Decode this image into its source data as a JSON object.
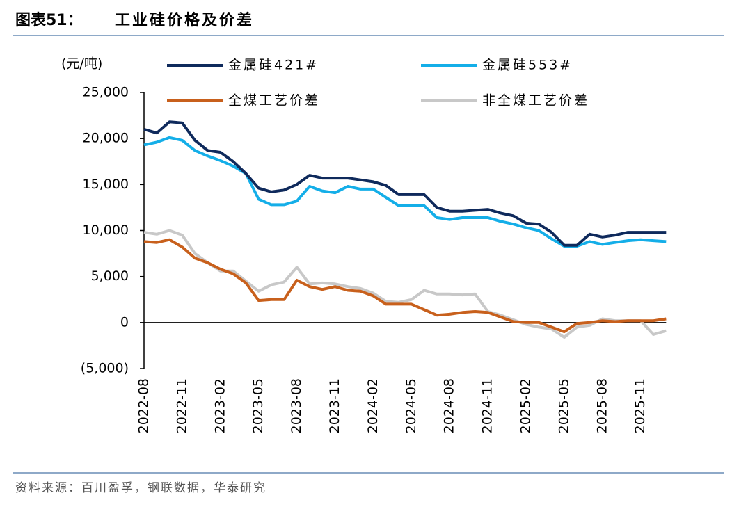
{
  "chart_data": {
    "type": "line",
    "figure_label": "图表51：",
    "title": "工业硅价格及价差",
    "ylabel": "(元/吨)",
    "source": "资料来源：百川盈孚，钢联数据，华泰研究",
    "x": [
      "2022-08",
      "2022-09",
      "2022-10",
      "2022-11",
      "2022-12",
      "2023-01",
      "2023-02",
      "2023-03",
      "2023-04",
      "2023-05",
      "2023-06",
      "2023-07",
      "2023-08",
      "2023-09",
      "2023-10",
      "2023-11",
      "2023-12",
      "2024-01",
      "2024-02",
      "2024-03",
      "2024-04",
      "2024-05",
      "2024-06",
      "2024-07",
      "2024-08",
      "2024-09",
      "2024-10",
      "2024-11",
      "2024-12",
      "2025-01",
      "2025-02",
      "2025-03",
      "2025-04",
      "2025-05",
      "2025-06",
      "2025-07",
      "2025-08",
      "2025-09",
      "2025-10",
      "2025-11",
      "2025-12",
      "2026-01"
    ],
    "xticks": [
      "2022-08",
      "2022-11",
      "2023-02",
      "2023-05",
      "2023-08",
      "2023-11",
      "2024-02",
      "2024-05",
      "2024-08",
      "2024-11",
      "2025-02",
      "2025-05",
      "2025-08",
      "2025-11"
    ],
    "ylim": [
      -5000,
      25000
    ],
    "yticks": [
      {
        "value": -5000,
        "label": "(5,000)"
      },
      0,
      {
        "value": 5000,
        "label": "5,000"
      },
      {
        "value": 10000,
        "label": "10,000"
      },
      {
        "value": 15000,
        "label": "15,000"
      },
      {
        "value": 20000,
        "label": "20,000"
      },
      {
        "value": 25000,
        "label": "25,000"
      }
    ],
    "series": [
      {
        "name": "金属硅421#",
        "color": "#0f2a5c",
        "values": [
          21000,
          20600,
          21800,
          21700,
          19800,
          18700,
          18500,
          17500,
          16200,
          14600,
          14200,
          14400,
          15000,
          16000,
          15700,
          15700,
          15700,
          15500,
          15300,
          14900,
          13900,
          13900,
          13900,
          12500,
          12100,
          12100,
          12200,
          12300,
          11900,
          11600,
          10800,
          10700,
          9800,
          8400,
          8400,
          9600,
          9300,
          9500,
          9800,
          9800,
          9800,
          9800
        ]
      },
      {
        "name": "金属硅553#",
        "color": "#14aee8",
        "values": [
          19300,
          19600,
          20100,
          19800,
          18700,
          18100,
          17600,
          17000,
          16200,
          13400,
          12800,
          12800,
          13200,
          14800,
          14300,
          14100,
          14800,
          14500,
          14500,
          13600,
          12700,
          12700,
          12700,
          11400,
          11200,
          11400,
          11400,
          11400,
          11000,
          10700,
          10300,
          10000,
          9100,
          8300,
          8300,
          8800,
          8500,
          8700,
          8900,
          9000,
          8900,
          8800
        ]
      },
      {
        "name": "全煤工艺价差",
        "color": "#c8601c",
        "values": [
          8800,
          8700,
          9000,
          8200,
          7000,
          6500,
          5800,
          5300,
          4300,
          2400,
          2500,
          2500,
          4600,
          3900,
          3600,
          3900,
          3500,
          3400,
          2900,
          2000,
          2000,
          2000,
          1400,
          800,
          900,
          1100,
          1200,
          1100,
          600,
          100,
          0,
          0,
          -500,
          -1000,
          -100,
          0,
          200,
          100,
          200,
          200,
          200,
          400
        ]
      },
      {
        "name": "非全煤工艺价差",
        "color": "#c8c8c8",
        "values": [
          9800,
          9600,
          10000,
          9500,
          7500,
          6500,
          5600,
          5600,
          4500,
          3400,
          4100,
          4400,
          6000,
          4200,
          4300,
          4200,
          3900,
          3700,
          3200,
          2300,
          2200,
          2500,
          3500,
          3100,
          3100,
          3000,
          3100,
          1200,
          800,
          300,
          -200,
          -500,
          -700,
          -1600,
          -500,
          -300,
          400,
          200,
          200,
          200,
          -1300,
          -900
        ]
      }
    ]
  }
}
